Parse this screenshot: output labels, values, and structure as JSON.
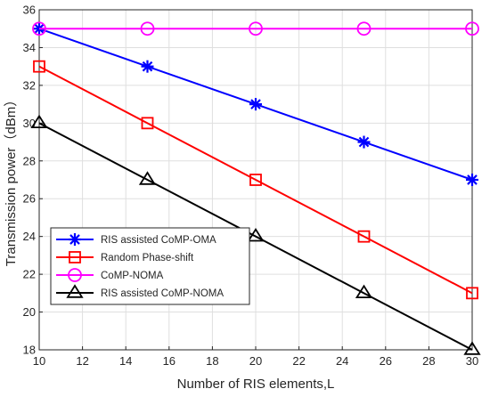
{
  "chart_data": {
    "type": "line",
    "title": "",
    "xlabel": "Number of RIS elements,L",
    "ylabel": "Transmission power（dBm）",
    "xlim": [
      10,
      30
    ],
    "ylim": [
      18,
      36
    ],
    "xticks": [
      10,
      12,
      14,
      16,
      18,
      20,
      22,
      24,
      26,
      28,
      30
    ],
    "yticks": [
      18,
      20,
      22,
      24,
      26,
      28,
      30,
      32,
      34,
      36
    ],
    "grid": true,
    "legend_position": "bottom-left",
    "x": [
      10,
      15,
      20,
      25,
      30
    ],
    "series": [
      {
        "name": "RIS assisted CoMP-OMA",
        "values": [
          35,
          33,
          31,
          29,
          27
        ],
        "color": "#0000ff",
        "marker": "asterisk"
      },
      {
        "name": "Random Phase-shift",
        "values": [
          33,
          30,
          27,
          24,
          21
        ],
        "color": "#ff0000",
        "marker": "square"
      },
      {
        "name": "CoMP-NOMA",
        "values": [
          35,
          35,
          35,
          35,
          35
        ],
        "color": "#ff00ff",
        "marker": "circle"
      },
      {
        "name": "RIS assisted CoMP-NOMA",
        "values": [
          30,
          27,
          24,
          21,
          18
        ],
        "color": "#000000",
        "marker": "triangle"
      }
    ]
  }
}
